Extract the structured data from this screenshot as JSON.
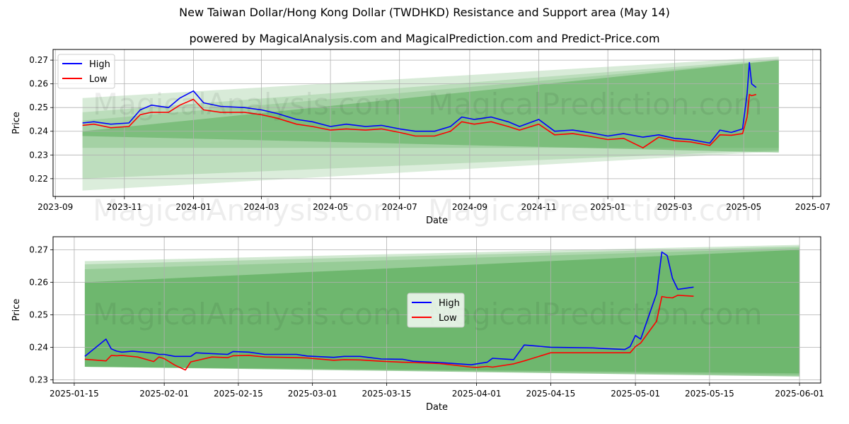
{
  "title": "New Taiwan Dollar/Hong Kong Dollar (TWDHKD) Resistance and Support area (May 14)",
  "subtitle": "powered by MagicalAnalysis.com and MagicalPrediction.com and Predict-Price.com",
  "watermarks": [
    "MagicalAnalysis.com",
    "MagicalPrediction.com"
  ],
  "colors": {
    "high": "#0000ff",
    "low": "#ff0000",
    "band": "#4ca64c"
  },
  "chart_data": [
    {
      "type": "line",
      "xlabel": "Date",
      "ylabel": "Price",
      "xlim": [
        "2023-08-30",
        "2025-07-08"
      ],
      "ylim": [
        0.2125,
        0.2745
      ],
      "xticks": [
        "2023-09",
        "2023-11",
        "2024-01",
        "2024-03",
        "2024-05",
        "2024-07",
        "2024-09",
        "2024-11",
        "2025-01",
        "2025-03",
        "2025-05",
        "2025-07"
      ],
      "xtick_dates": [
        "2023-09-01",
        "2023-11-01",
        "2024-01-01",
        "2024-03-01",
        "2024-05-01",
        "2024-07-01",
        "2024-09-01",
        "2024-11-01",
        "2025-01-01",
        "2025-03-01",
        "2025-05-01",
        "2025-07-01"
      ],
      "yticks": [
        "0.22",
        "0.23",
        "0.24",
        "0.25",
        "0.26",
        "0.27"
      ],
      "legend": {
        "position": "top-left",
        "entries": [
          "High",
          "Low"
        ]
      },
      "grid": true,
      "bands": [
        {
          "x": [
            "2023-09-25",
            "2025-06-01"
          ],
          "upper": [
            0.254,
            0.2715
          ],
          "lower": [
            0.233,
            0.233
          ],
          "opacity": 0.22
        },
        {
          "x": [
            "2023-09-25",
            "2025-06-01"
          ],
          "upper": [
            0.248,
            0.2705
          ],
          "lower": [
            0.22,
            0.232
          ],
          "opacity": 0.2
        },
        {
          "x": [
            "2023-09-25",
            "2025-06-01"
          ],
          "upper": [
            0.2445,
            0.27
          ],
          "lower": [
            0.215,
            0.2315
          ],
          "opacity": 0.2
        },
        {
          "x": [
            "2023-09-25",
            "2025-06-01"
          ],
          "upper": [
            0.24,
            0.27
          ],
          "lower": [
            0.238,
            0.231
          ],
          "opacity": 0.45
        }
      ],
      "series": [
        {
          "name": "High",
          "x": [
            "2023-09-25",
            "2023-10-05",
            "2023-10-20",
            "2023-11-05",
            "2023-11-15",
            "2023-11-25",
            "2023-12-10",
            "2023-12-20",
            "2024-01-01",
            "2024-01-10",
            "2024-01-25",
            "2024-02-15",
            "2024-03-01",
            "2024-03-15",
            "2024-04-01",
            "2024-04-15",
            "2024-05-01",
            "2024-05-15",
            "2024-06-01",
            "2024-06-15",
            "2024-07-01",
            "2024-07-15",
            "2024-08-01",
            "2024-08-15",
            "2024-08-25",
            "2024-09-05",
            "2024-09-20",
            "2024-10-05",
            "2024-10-15",
            "2024-11-01",
            "2024-11-15",
            "2024-12-01",
            "2024-12-15",
            "2025-01-01",
            "2025-01-15",
            "2025-02-01",
            "2025-02-15",
            "2025-03-01",
            "2025-03-15",
            "2025-04-01",
            "2025-04-10",
            "2025-04-20",
            "2025-04-30",
            "2025-05-04",
            "2025-05-06",
            "2025-05-08",
            "2025-05-12"
          ],
          "y": [
            0.2435,
            0.244,
            0.243,
            0.2435,
            0.249,
            0.251,
            0.25,
            0.254,
            0.257,
            0.252,
            0.2505,
            0.25,
            0.249,
            0.2475,
            0.245,
            0.244,
            0.242,
            0.243,
            0.242,
            0.2425,
            0.241,
            0.24,
            0.24,
            0.242,
            0.246,
            0.245,
            0.246,
            0.244,
            0.242,
            0.245,
            0.24,
            0.2405,
            0.2395,
            0.238,
            0.239,
            0.2375,
            0.2385,
            0.237,
            0.2365,
            0.235,
            0.2405,
            0.2395,
            0.241,
            0.256,
            0.269,
            0.26,
            0.2585
          ]
        },
        {
          "name": "Low",
          "x": [
            "2023-09-25",
            "2023-10-05",
            "2023-10-20",
            "2023-11-05",
            "2023-11-15",
            "2023-11-25",
            "2023-12-10",
            "2023-12-20",
            "2024-01-01",
            "2024-01-10",
            "2024-01-25",
            "2024-02-15",
            "2024-03-01",
            "2024-03-15",
            "2024-04-01",
            "2024-04-15",
            "2024-05-01",
            "2024-05-15",
            "2024-06-01",
            "2024-06-15",
            "2024-07-01",
            "2024-07-15",
            "2024-08-01",
            "2024-08-15",
            "2024-08-25",
            "2024-09-05",
            "2024-09-20",
            "2024-10-05",
            "2024-10-15",
            "2024-11-01",
            "2024-11-15",
            "2024-12-01",
            "2024-12-15",
            "2025-01-01",
            "2025-01-15",
            "2025-02-01",
            "2025-02-15",
            "2025-03-01",
            "2025-03-15",
            "2025-04-01",
            "2025-04-10",
            "2025-04-20",
            "2025-04-30",
            "2025-05-04",
            "2025-05-06",
            "2025-05-08",
            "2025-05-12"
          ],
          "y": [
            0.2425,
            0.243,
            0.2415,
            0.242,
            0.247,
            0.248,
            0.248,
            0.251,
            0.2535,
            0.249,
            0.248,
            0.248,
            0.247,
            0.2455,
            0.243,
            0.242,
            0.2405,
            0.241,
            0.2405,
            0.241,
            0.2395,
            0.238,
            0.238,
            0.24,
            0.244,
            0.243,
            0.244,
            0.242,
            0.2405,
            0.243,
            0.2385,
            0.239,
            0.238,
            0.2365,
            0.237,
            0.233,
            0.2375,
            0.236,
            0.2355,
            0.234,
            0.2385,
            0.2383,
            0.239,
            0.246,
            0.2555,
            0.255,
            0.2555
          ]
        }
      ]
    },
    {
      "type": "line",
      "xlabel": "Date",
      "ylabel": "Price",
      "xlim": [
        "2025-01-11",
        "2025-06-05"
      ],
      "ylim": [
        0.229,
        0.274
      ],
      "xticks": [
        "2025-01-15",
        "2025-02-01",
        "2025-02-15",
        "2025-03-01",
        "2025-03-15",
        "2025-04-01",
        "2025-04-15",
        "2025-05-01",
        "2025-05-15",
        "2025-06-01"
      ],
      "yticks": [
        "0.23",
        "0.24",
        "0.25",
        "0.26",
        "0.27"
      ],
      "legend": {
        "position": "center",
        "entries": [
          "High",
          "Low"
        ]
      },
      "grid": true,
      "bands": [
        {
          "x": [
            "2025-01-17",
            "2025-06-01"
          ],
          "upper": [
            0.2665,
            0.2715
          ],
          "lower": [
            0.234,
            0.232
          ],
          "opacity": 0.25
        },
        {
          "x": [
            "2025-01-17",
            "2025-06-01"
          ],
          "upper": [
            0.2655,
            0.271
          ],
          "lower": [
            0.234,
            0.232
          ],
          "opacity": 0.25
        },
        {
          "x": [
            "2025-01-17",
            "2025-06-01"
          ],
          "upper": [
            0.264,
            0.2705
          ],
          "lower": [
            0.234,
            0.2315
          ],
          "opacity": 0.25
        },
        {
          "x": [
            "2025-01-17",
            "2025-06-01"
          ],
          "upper": [
            0.26,
            0.27
          ],
          "lower": [
            0.234,
            0.231
          ],
          "opacity": 0.55
        }
      ],
      "series": [
        {
          "name": "High",
          "x": [
            "2025-01-17",
            "2025-01-21",
            "2025-01-22",
            "2025-01-23",
            "2025-01-24",
            "2025-01-26",
            "2025-01-30",
            "2025-01-31",
            "2025-02-01",
            "2025-02-03",
            "2025-02-06",
            "2025-02-07",
            "2025-02-08",
            "2025-02-13",
            "2025-02-14",
            "2025-02-17",
            "2025-02-20",
            "2025-02-26",
            "2025-02-28",
            "2025-03-05",
            "2025-03-07",
            "2025-03-10",
            "2025-03-14",
            "2025-03-18",
            "2025-03-20",
            "2025-03-25",
            "2025-03-31",
            "2025-04-01",
            "2025-04-03",
            "2025-04-04",
            "2025-04-08",
            "2025-04-10",
            "2025-04-15",
            "2025-04-23",
            "2025-04-25",
            "2025-04-29",
            "2025-04-30",
            "2025-05-01",
            "2025-05-02",
            "2025-05-05",
            "2025-05-06",
            "2025-05-07",
            "2025-05-08",
            "2025-05-09",
            "2025-05-12"
          ],
          "y": [
            0.2372,
            0.2425,
            0.2395,
            0.2388,
            0.2385,
            0.2388,
            0.2382,
            0.2378,
            0.2378,
            0.2372,
            0.2372,
            0.2383,
            0.2382,
            0.2378,
            0.2387,
            0.2385,
            0.2378,
            0.2378,
            0.2373,
            0.2369,
            0.2372,
            0.2372,
            0.2364,
            0.2363,
            0.2357,
            0.2353,
            0.2346,
            0.2349,
            0.2354,
            0.2366,
            0.2362,
            0.2407,
            0.24,
            0.2398,
            0.2396,
            0.2393,
            0.2402,
            0.2436,
            0.2425,
            0.2565,
            0.2693,
            0.2682,
            0.2612,
            0.2578,
            0.2585
          ]
        },
        {
          "name": "Low",
          "x": [
            "2025-01-17",
            "2025-01-21",
            "2025-01-22",
            "2025-01-23",
            "2025-01-24",
            "2025-01-27",
            "2025-01-30",
            "2025-01-31",
            "2025-02-01",
            "2025-02-03",
            "2025-02-05",
            "2025-02-06",
            "2025-02-10",
            "2025-02-13",
            "2025-02-14",
            "2025-02-17",
            "2025-02-20",
            "2025-02-26",
            "2025-02-28",
            "2025-03-05",
            "2025-03-07",
            "2025-03-10",
            "2025-03-14",
            "2025-03-18",
            "2025-03-20",
            "2025-03-25",
            "2025-03-31",
            "2025-04-01",
            "2025-04-03",
            "2025-04-04",
            "2025-04-08",
            "2025-04-10",
            "2025-04-15",
            "2025-04-23",
            "2025-04-25",
            "2025-04-29",
            "2025-04-30",
            "2025-05-01",
            "2025-05-02",
            "2025-05-05",
            "2025-05-06",
            "2025-05-07",
            "2025-05-08",
            "2025-05-09",
            "2025-05-12"
          ],
          "y": [
            0.2363,
            0.2358,
            0.2375,
            0.2374,
            0.2375,
            0.237,
            0.2356,
            0.237,
            0.2365,
            0.2345,
            0.233,
            0.2355,
            0.237,
            0.2368,
            0.2374,
            0.2375,
            0.237,
            0.2368,
            0.2367,
            0.236,
            0.2362,
            0.2361,
            0.2357,
            0.2354,
            0.2353,
            0.235,
            0.2339,
            0.2338,
            0.2341,
            0.2339,
            0.2349,
            0.2358,
            0.2383,
            0.2383,
            0.2383,
            0.2383,
            0.2383,
            0.2402,
            0.2413,
            0.248,
            0.2556,
            0.2553,
            0.2552,
            0.256,
            0.2557
          ]
        }
      ]
    }
  ]
}
